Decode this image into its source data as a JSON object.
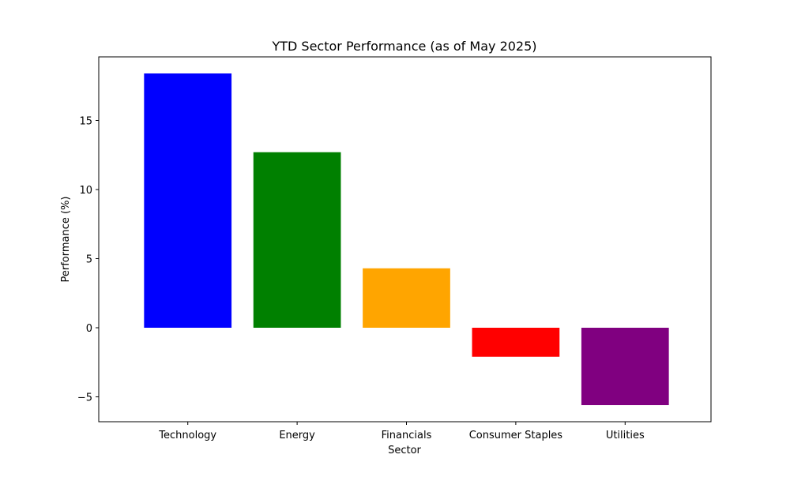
{
  "chart_data": {
    "type": "bar",
    "title": "YTD Sector Performance (as of May 2025)",
    "xlabel": "Sector",
    "ylabel": "Performance (%)",
    "categories": [
      "Technology",
      "Energy",
      "Financials",
      "Consumer Staples",
      "Utilities"
    ],
    "values": [
      18.4,
      12.7,
      4.3,
      -2.1,
      -5.6
    ],
    "colors": [
      "#0000ff",
      "#008000",
      "#ffa500",
      "#ff0000",
      "#800080"
    ],
    "ylim": [
      -6.8,
      19.6
    ],
    "yticks": [
      -5,
      0,
      5,
      10,
      15
    ],
    "ytick_labels": [
      "−5",
      "0",
      "5",
      "10",
      "15"
    ],
    "grid": false,
    "legend": "none"
  }
}
